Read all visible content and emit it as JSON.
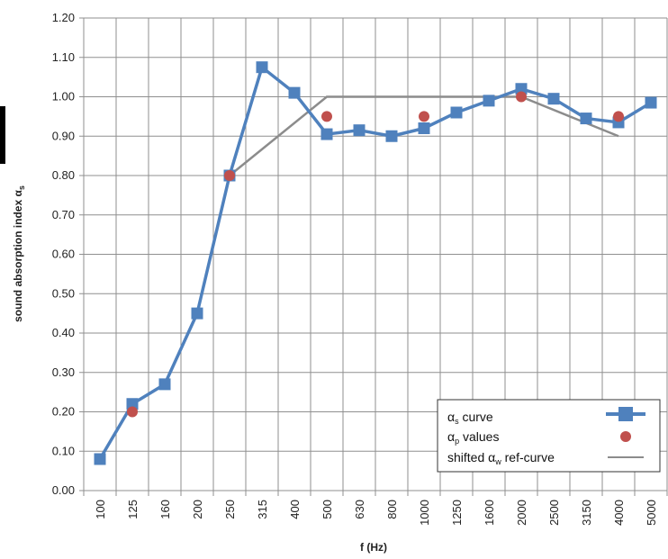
{
  "chart_data": {
    "type": "line",
    "categories": [
      "100",
      "125",
      "160",
      "200",
      "250",
      "315",
      "400",
      "500",
      "630",
      "800",
      "1000",
      "1250",
      "1600",
      "2000",
      "2500",
      "3150",
      "4000",
      "5000"
    ],
    "xlabel": "f (Hz)",
    "ylabel": "sound absorption index αs",
    "ylim": [
      0,
      1.2
    ],
    "ytick_labels": [
      "0.00",
      "0.10",
      "0.20",
      "0.30",
      "0.40",
      "0.50",
      "0.60",
      "0.70",
      "0.80",
      "0.90",
      "1.00",
      "1.10",
      "1.20"
    ],
    "grid": true,
    "legend_position": "bottom-right",
    "series": [
      {
        "name": "αs curve",
        "style": "line-square",
        "color": "#4f81bd",
        "values": [
          0.08,
          0.22,
          0.27,
          0.45,
          0.8,
          1.075,
          1.01,
          0.905,
          0.915,
          0.9,
          0.92,
          0.96,
          0.99,
          1.02,
          0.995,
          0.945,
          0.935,
          0.985
        ]
      },
      {
        "name": "αp values",
        "style": "dot",
        "color": "#c0504d",
        "x": [
          "125",
          "250",
          "500",
          "1000",
          "2000",
          "4000"
        ],
        "values": [
          0.2,
          0.8,
          0.95,
          0.95,
          1.0,
          0.95
        ]
      },
      {
        "name": "shifted αw ref-curve",
        "style": "line",
        "color": "#8c8c8c",
        "x": [
          "250",
          "500",
          "2000",
          "4000"
        ],
        "values": [
          0.8,
          1.0,
          1.0,
          0.9
        ]
      }
    ],
    "legend": {
      "alpha_symbol": "α",
      "entries": [
        {
          "sub": "s",
          "text": " curve"
        },
        {
          "sub": "p",
          "text": " values"
        },
        {
          "pre": "shifted ",
          "sub": "w",
          "text": " ref-curve"
        }
      ]
    },
    "ylabel_parts": {
      "text": "sound absorption index ",
      "alpha": "α",
      "sub": "s"
    }
  }
}
